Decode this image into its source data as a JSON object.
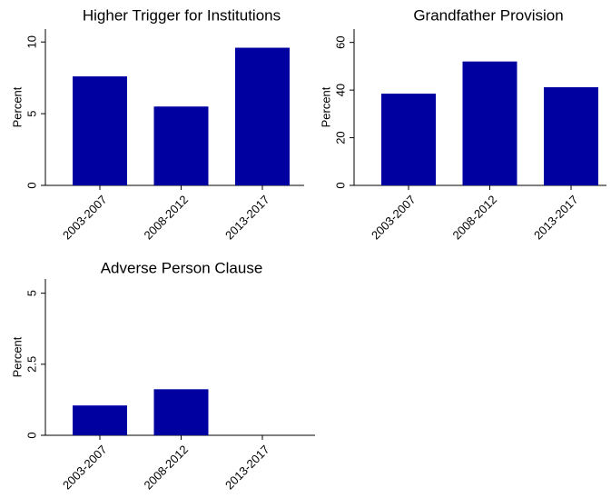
{
  "chart_data": [
    {
      "type": "bar",
      "title": "Higher Trigger for Institutions",
      "ylabel": "Percent",
      "categories": [
        "2003-2007",
        "2008-2012",
        "2013-2017"
      ],
      "values": [
        7.6,
        5.5,
        9.6
      ],
      "color": "#0000a0",
      "ylim": [
        0,
        10.9
      ],
      "yticks": [
        0,
        5,
        10
      ]
    },
    {
      "type": "bar",
      "title": "Grandfather Provision",
      "ylabel": "Percent",
      "categories": [
        "2003-2007",
        "2008-2012",
        "2013-2017"
      ],
      "values": [
        38.5,
        52,
        41.2
      ],
      "color": "#0000a0",
      "ylim": [
        0,
        65.6
      ],
      "yticks": [
        0,
        20,
        40,
        60
      ]
    },
    {
      "type": "bar",
      "title": "Adverse Person Clause",
      "ylabel": "Percent",
      "categories": [
        "2003-2007",
        "2008-2012",
        "2013-2017"
      ],
      "values": [
        1.05,
        1.62,
        0
      ],
      "color": "#0000a0",
      "ylim": [
        0,
        5.5
      ],
      "yticks": [
        0,
        2.5,
        5
      ]
    }
  ]
}
